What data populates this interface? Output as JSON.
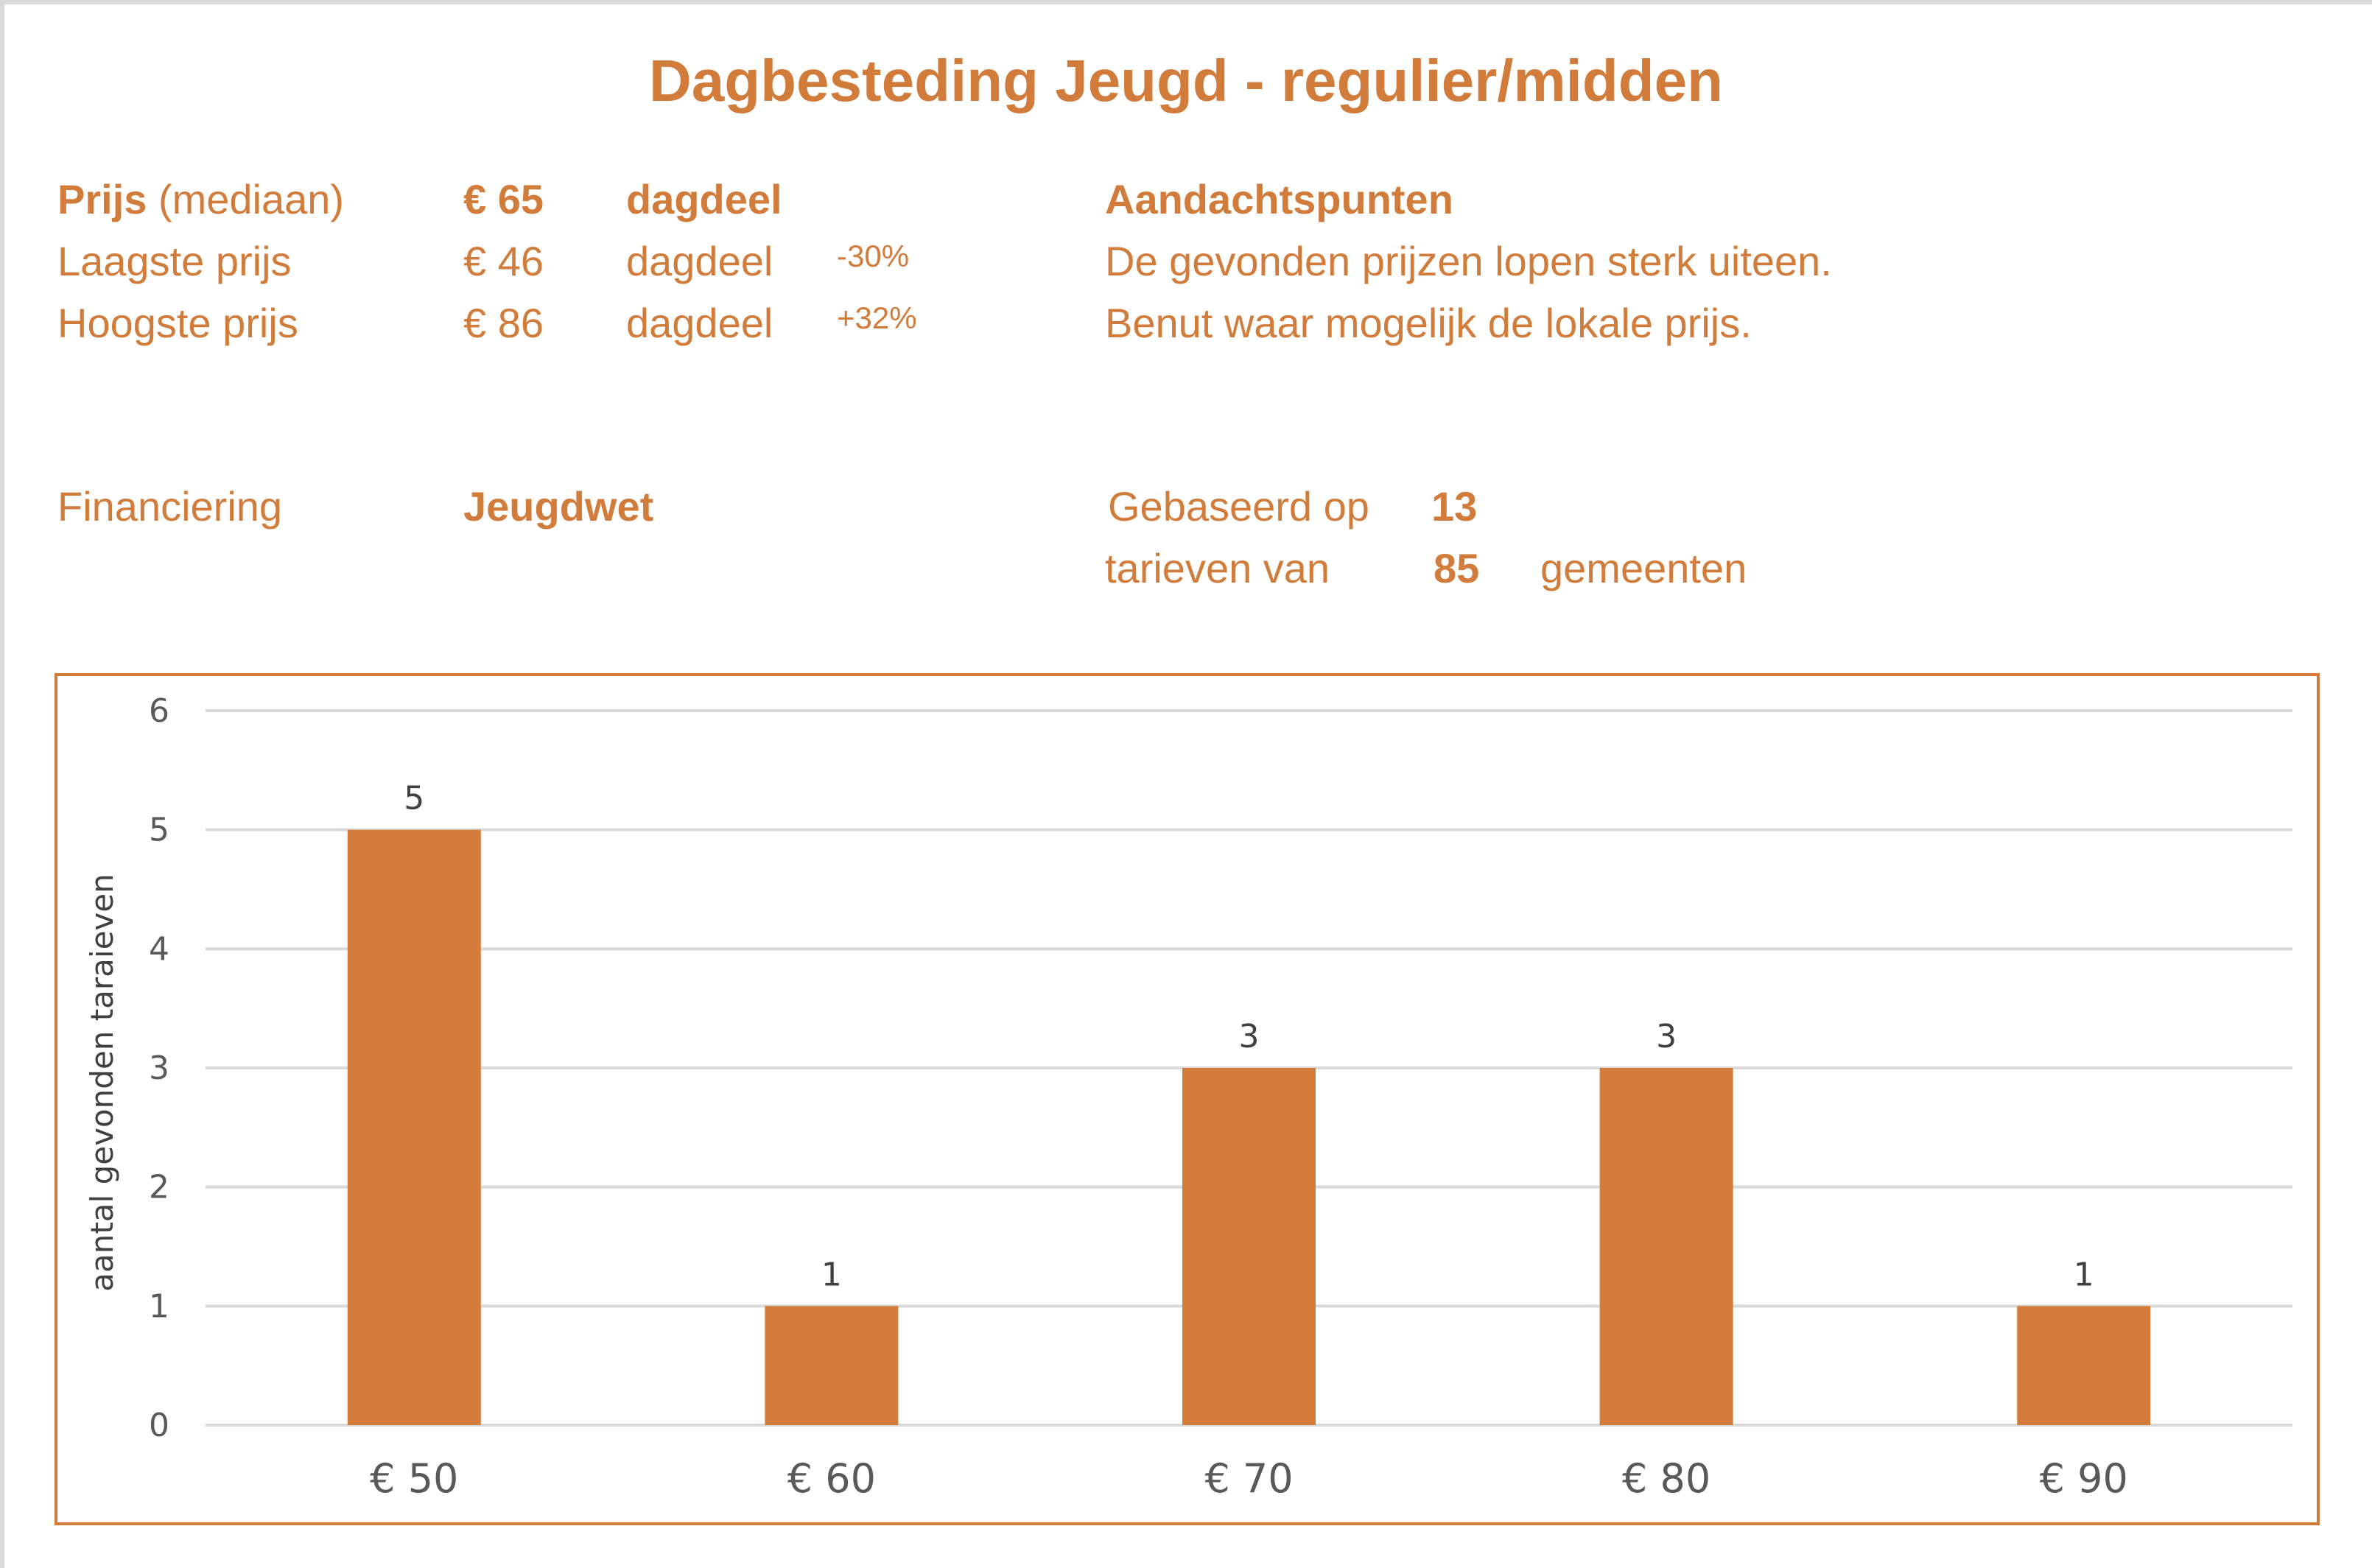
{
  "title": "Dagbesteding Jeugd - regulier/midden",
  "summary": {
    "median": {
      "label_bold": "Prijs",
      "label_rest": "(mediaan)",
      "value": "€ 65",
      "unit": "dagdeel"
    },
    "lowest": {
      "label": "Laagste prijs",
      "value": "€ 46",
      "unit": "dagdeel",
      "delta": "-30%"
    },
    "highest": {
      "label": "Hoogste prijs",
      "value": "€ 86",
      "unit": "dagdeel",
      "delta": "+32%"
    }
  },
  "attention": {
    "heading": "Aandachtspunten",
    "lines": [
      "De gevonden prijzen lopen sterk uiteen.",
      "Benut waar mogelijk de lokale prijs."
    ]
  },
  "financing": {
    "label": "Financiering",
    "value": "Jeugdwet"
  },
  "basis": {
    "line1_text": "Gebaseerd op",
    "count_rates": "13",
    "line2_text": "tarieven van",
    "count_municipalities": "85",
    "line2_suffix": "gemeenten"
  },
  "colors": {
    "accent": "#d27c3c",
    "bar": "#d47c3b",
    "grid": "#d9d9d9",
    "axis_text": "#595959"
  },
  "chart_data": {
    "type": "bar",
    "title": "",
    "xlabel": "",
    "ylabel": "aantal gevonden taraieven",
    "categories": [
      "€ 50",
      "€ 60",
      "€ 70",
      "€ 80",
      "€ 90"
    ],
    "values": [
      5,
      1,
      3,
      3,
      1
    ],
    "data_labels": [
      "5",
      "1",
      "3",
      "3",
      "1"
    ],
    "ylim": [
      0,
      6
    ],
    "yticks": [
      "0",
      "1",
      "2",
      "3",
      "4",
      "5",
      "6"
    ],
    "grid": true,
    "legend": "none"
  }
}
